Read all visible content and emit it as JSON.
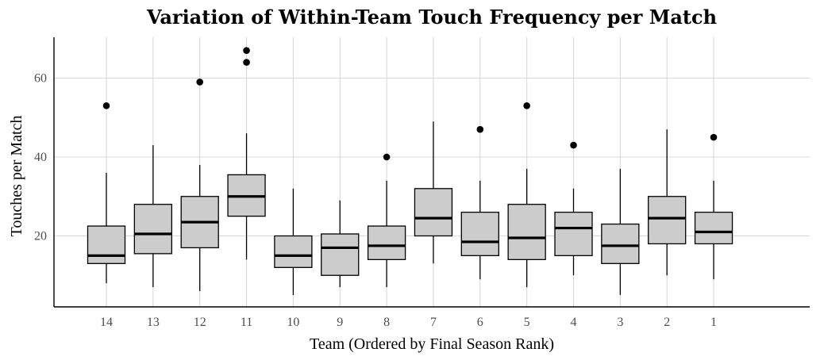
{
  "chart_data": {
    "type": "boxplot",
    "title": "Variation of Within-Team Touch Frequency per Match",
    "xlabel": "Team (Ordered by Final Season Rank)",
    "ylabel": "Touches per Match",
    "ylim": [
      2,
      70
    ],
    "yticks": [
      20,
      40,
      60
    ],
    "grid": true,
    "categories": [
      "14",
      "13",
      "12",
      "11",
      "10",
      "9",
      "8",
      "7",
      "6",
      "5",
      "4",
      "3",
      "2",
      "1"
    ],
    "boxes": [
      {
        "team": "14",
        "min": 8,
        "q1": 13,
        "median": 15,
        "q3": 22.5,
        "max": 36,
        "outliers": [
          53
        ]
      },
      {
        "team": "13",
        "min": 7,
        "q1": 15.5,
        "median": 20.5,
        "q3": 28,
        "max": 43,
        "outliers": []
      },
      {
        "team": "12",
        "min": 6,
        "q1": 17,
        "median": 23.5,
        "q3": 30,
        "max": 38,
        "outliers": [
          59
        ]
      },
      {
        "team": "11",
        "min": 14,
        "q1": 25,
        "median": 30,
        "q3": 35.5,
        "max": 46,
        "outliers": [
          64,
          67
        ]
      },
      {
        "team": "10",
        "min": 5,
        "q1": 12,
        "median": 15,
        "q3": 20,
        "max": 32,
        "outliers": []
      },
      {
        "team": "9",
        "min": 7,
        "q1": 10,
        "median": 17,
        "q3": 20.5,
        "max": 29,
        "outliers": []
      },
      {
        "team": "8",
        "min": 7,
        "q1": 14,
        "median": 17.5,
        "q3": 22.5,
        "max": 34,
        "outliers": [
          40
        ]
      },
      {
        "team": "7",
        "min": 13,
        "q1": 20,
        "median": 24.5,
        "q3": 32,
        "max": 49,
        "outliers": []
      },
      {
        "team": "6",
        "min": 9,
        "q1": 15,
        "median": 18.5,
        "q3": 26,
        "max": 34,
        "outliers": [
          47
        ]
      },
      {
        "team": "5",
        "min": 7,
        "q1": 14,
        "median": 19.5,
        "q3": 28,
        "max": 37,
        "outliers": [
          53
        ]
      },
      {
        "team": "4",
        "min": 10,
        "q1": 15,
        "median": 22,
        "q3": 26,
        "max": 32,
        "outliers": [
          43
        ]
      },
      {
        "team": "3",
        "min": 5,
        "q1": 13,
        "median": 17.5,
        "q3": 23,
        "max": 37,
        "outliers": []
      },
      {
        "team": "2",
        "min": 10,
        "q1": 18,
        "median": 24.5,
        "q3": 30,
        "max": 47,
        "outliers": []
      },
      {
        "team": "1",
        "min": 9,
        "q1": 18,
        "median": 21,
        "q3": 26,
        "max": 34,
        "outliers": [
          45
        ]
      }
    ],
    "colors": {
      "box_fill": "#cccccc",
      "stroke": "#000000",
      "grid": "#d9d9d9"
    }
  }
}
